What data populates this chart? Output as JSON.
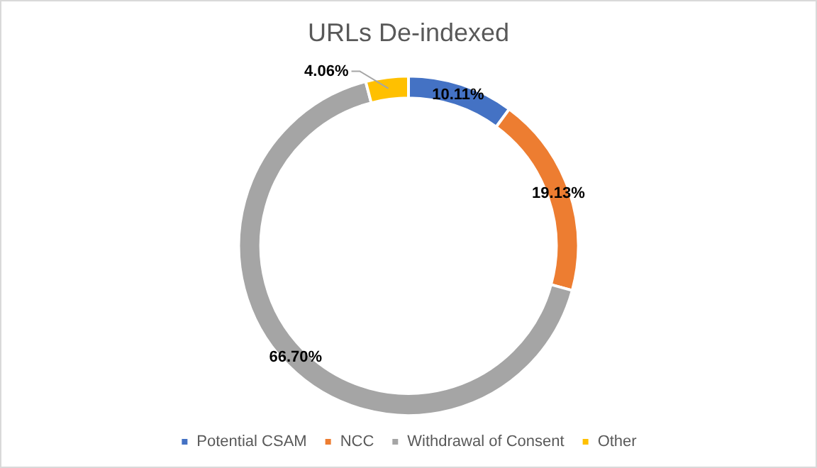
{
  "chart_data": {
    "type": "donut",
    "title": "URLs De-indexed",
    "categories": [
      "Potential CSAM",
      "NCC",
      "Withdrawal of Consent",
      "Other"
    ],
    "values": [
      10.11,
      19.13,
      66.7,
      4.06
    ],
    "colors": [
      "#4472c4",
      "#ed7d31",
      "#a5a5a5",
      "#ffc000"
    ],
    "value_labels": [
      "10.11%",
      "19.13%",
      "66.70%",
      "4.06%"
    ],
    "legend": "bottom"
  }
}
